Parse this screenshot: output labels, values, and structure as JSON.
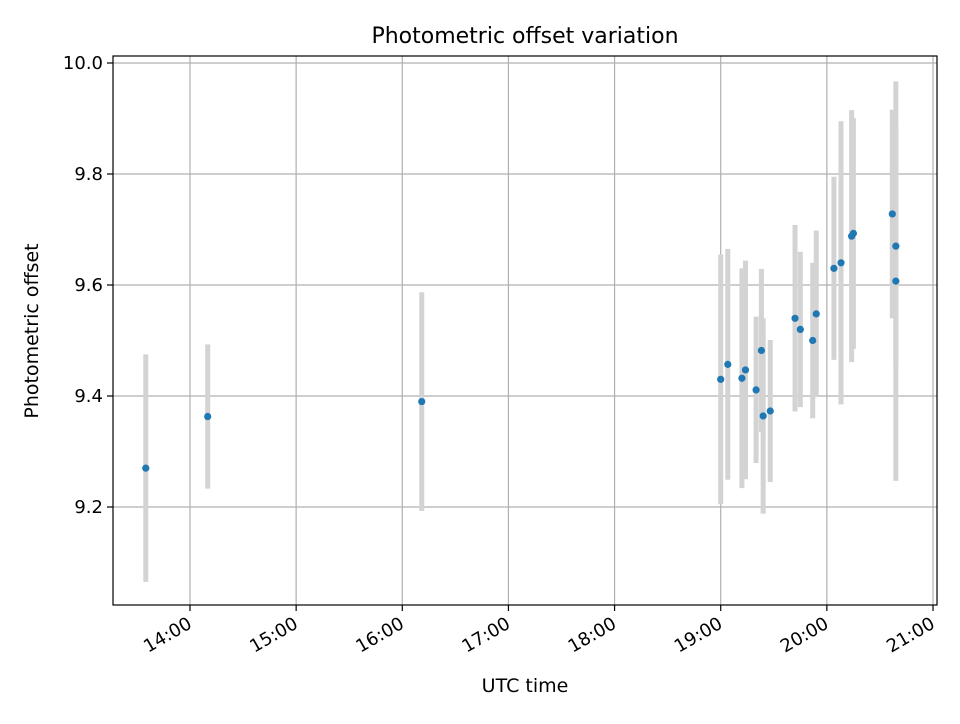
{
  "chart_data": {
    "type": "scatter",
    "title": "Photometric offset variation",
    "xlabel": "UTC time",
    "ylabel": "Photometric offset",
    "x_ticks": [
      "14:00",
      "15:00",
      "16:00",
      "17:00",
      "18:00",
      "19:00",
      "20:00",
      "21:00"
    ],
    "y_ticks": [
      9.2,
      9.4,
      9.6,
      9.8,
      10.0
    ],
    "y_tick_labels": [
      "9.2",
      "9.4",
      "9.6",
      "9.8",
      "10.0"
    ],
    "xlim": [
      "13:30",
      "21:00"
    ],
    "ylim": [
      9.02,
      10.01
    ],
    "grid": true,
    "marker_color": "#1f77b4",
    "errorbar_color": "#d3d3d3",
    "points": [
      {
        "x": "13:35",
        "y": 9.27,
        "yerr": 0.205
      },
      {
        "x": "14:10",
        "y": 9.363,
        "yerr": 0.13
      },
      {
        "x": "16:11",
        "y": 9.39,
        "yerr": 0.197
      },
      {
        "x": "19:00",
        "y": 9.43,
        "yerr": 0.225
      },
      {
        "x": "19:04",
        "y": 9.457,
        "yerr": 0.208
      },
      {
        "x": "19:12",
        "y": 9.432,
        "yerr": 0.198
      },
      {
        "x": "19:14",
        "y": 9.447,
        "yerr": 0.197
      },
      {
        "x": "19:20",
        "y": 9.411,
        "yerr": 0.132
      },
      {
        "x": "19:23",
        "y": 9.482,
        "yerr": 0.147
      },
      {
        "x": "19:24",
        "y": 9.364,
        "yerr": 0.176
      },
      {
        "x": "19:28",
        "y": 9.373,
        "yerr": 0.128
      },
      {
        "x": "19:42",
        "y": 9.54,
        "yerr": 0.168
      },
      {
        "x": "19:45",
        "y": 9.52,
        "yerr": 0.14
      },
      {
        "x": "19:52",
        "y": 9.5,
        "yerr": 0.14
      },
      {
        "x": "19:54",
        "y": 9.548,
        "yerr": 0.15
      },
      {
        "x": "20:04",
        "y": 9.63,
        "yerr": 0.165
      },
      {
        "x": "20:08",
        "y": 9.64,
        "yerr": 0.255
      },
      {
        "x": "20:14",
        "y": 9.688,
        "yerr": 0.227
      },
      {
        "x": "20:15",
        "y": 9.693,
        "yerr": 0.208
      },
      {
        "x": "20:37",
        "y": 9.728,
        "yerr": 0.188
      },
      {
        "x": "20:39",
        "y": 9.67,
        "yerr": 0.216
      },
      {
        "x": "20:39",
        "y": 9.607,
        "yerr": 0.36
      }
    ]
  }
}
